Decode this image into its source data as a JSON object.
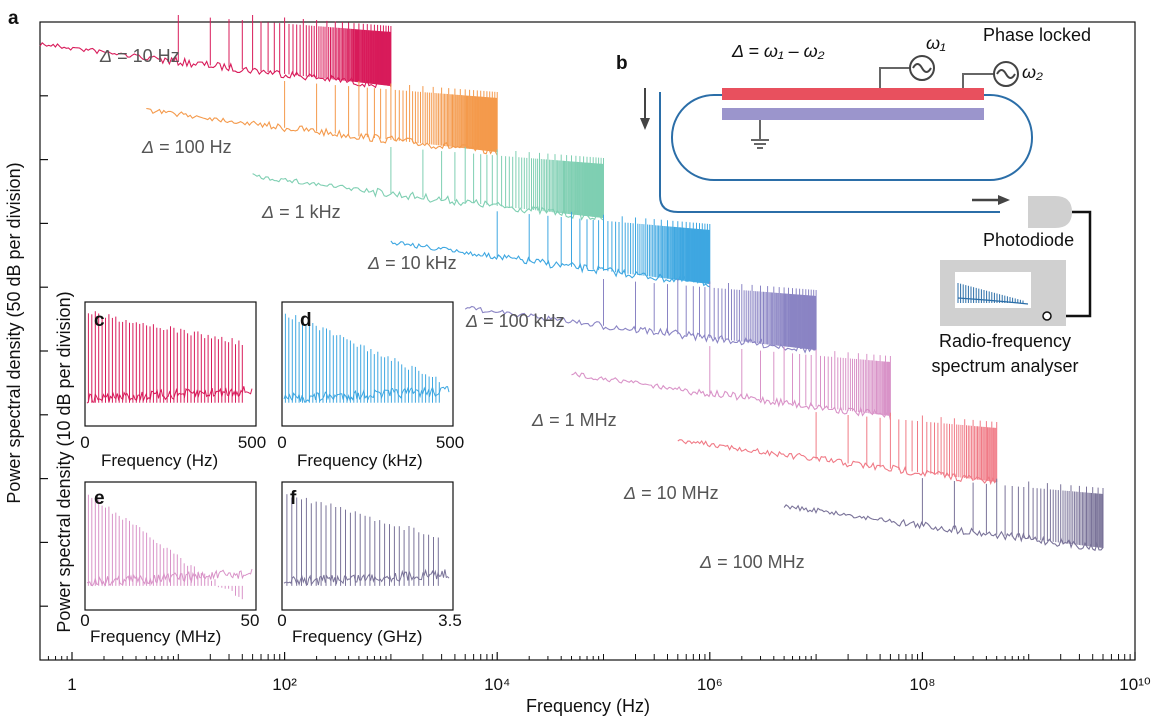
{
  "figure": {
    "panel_a_letter": "a",
    "panel_b_letter": "b",
    "panel_c_letter": "c",
    "panel_d_letter": "d",
    "panel_e_letter": "e",
    "panel_f_letter": "f"
  },
  "schematic": {
    "equation_delta": "Δ",
    "equation_rhs": " = ω₁ – ω₂",
    "omega1": "ω₁",
    "omega2": "ω₂",
    "phase_locked": "Phase locked",
    "photodiode": "Photodiode",
    "analyser_line1": "Radio-frequency",
    "analyser_line2": "spectrum analyser",
    "colors": {
      "electrode_top": "#e8505e",
      "electrode_bottom": "#9b95cc",
      "waveguide": "#2b6ea8"
    }
  },
  "chart_data": [
    {
      "panel": "a",
      "type": "line",
      "xlabel": "Frequency (Hz)",
      "ylabel": "Power spectral density (50 dB per division)",
      "xscale": "log",
      "xlim": [
        0.5,
        10000000000
      ],
      "x_ticks": [
        {
          "value": 1,
          "label": "1"
        },
        {
          "value": 100,
          "label": "10²"
        },
        {
          "value": 10000,
          "label": "10⁴"
        },
        {
          "value": 1000000,
          "label": "10⁶"
        },
        {
          "value": 100000000,
          "label": "10⁸"
        },
        {
          "value": 10000000000,
          "label": "10¹⁰"
        }
      ],
      "y_divisions": 10,
      "y_tick_labels": false,
      "series": [
        {
          "name": "Δ = 10 Hz",
          "delta_sym": "Δ",
          "delta_val": " = 10 Hz",
          "spacing_hz": 10,
          "x_start": 0.5,
          "x_end": 1000,
          "color": "#d81b5a"
        },
        {
          "name": "Δ = 100 Hz",
          "delta_sym": "Δ",
          "delta_val": " = 100 Hz",
          "spacing_hz": 100,
          "x_start": 5,
          "x_end": 10000,
          "color": "#f49a4c"
        },
        {
          "name": "Δ = 1 kHz",
          "delta_sym": "Δ",
          "delta_val": " = 1 kHz",
          "spacing_hz": 1000,
          "x_start": 50,
          "x_end": 100000,
          "color": "#7fcfb2"
        },
        {
          "name": "Δ = 10 kHz",
          "delta_sym": "Δ",
          "delta_val": " = 10 kHz",
          "spacing_hz": 10000,
          "x_start": 1000,
          "x_end": 1000000,
          "color": "#3ea7e1"
        },
        {
          "name": "Δ = 100 kHz",
          "delta_sym": "Δ",
          "delta_val": " = 100 kHz",
          "spacing_hz": 100000,
          "x_start": 5000,
          "x_end": 10000000,
          "color": "#8a84c4"
        },
        {
          "name": "Δ = 1 MHz",
          "delta_sym": "Δ",
          "delta_val": " = 1 MHz",
          "spacing_hz": 1000000,
          "x_start": 50000,
          "x_end": 50000000,
          "color": "#d993c8"
        },
        {
          "name": "Δ = 10 MHz",
          "delta_sym": "Δ",
          "delta_val": " = 10 MHz",
          "spacing_hz": 10000000,
          "x_start": 500000,
          "x_end": 500000000,
          "color": "#f07a86"
        },
        {
          "name": "Δ = 100 MHz",
          "delta_sym": "Δ",
          "delta_val": " = 100 MHz",
          "spacing_hz": 100000000,
          "x_start": 5000000,
          "x_end": 5000000000,
          "color": "#7a7399"
        }
      ]
    },
    {
      "panel": "c",
      "type": "line",
      "xlabel": "Frequency (Hz)",
      "ylabel": "Power spectral density (10 dB per division)",
      "xlim": [
        0,
        500
      ],
      "x_tick_labels": [
        "0",
        "500"
      ],
      "line_spacing": 10,
      "color": "#d81b5a"
    },
    {
      "panel": "d",
      "type": "line",
      "xlabel": "Frequency (kHz)",
      "xlim": [
        0,
        500
      ],
      "x_tick_labels": [
        "0",
        "500"
      ],
      "line_spacing": 10,
      "color": "#3ea7e1"
    },
    {
      "panel": "e",
      "type": "line",
      "xlabel": "Frequency (MHz)",
      "xlim": [
        0,
        50
      ],
      "x_tick_labels": [
        "0",
        "50"
      ],
      "line_spacing": 1,
      "color": "#d993c8"
    },
    {
      "panel": "f",
      "type": "line",
      "xlabel": "Frequency (GHz)",
      "xlim": [
        0,
        3.5
      ],
      "x_tick_labels": [
        "0",
        "3.5"
      ],
      "line_spacing": 0.1,
      "color": "#7a7399"
    }
  ]
}
